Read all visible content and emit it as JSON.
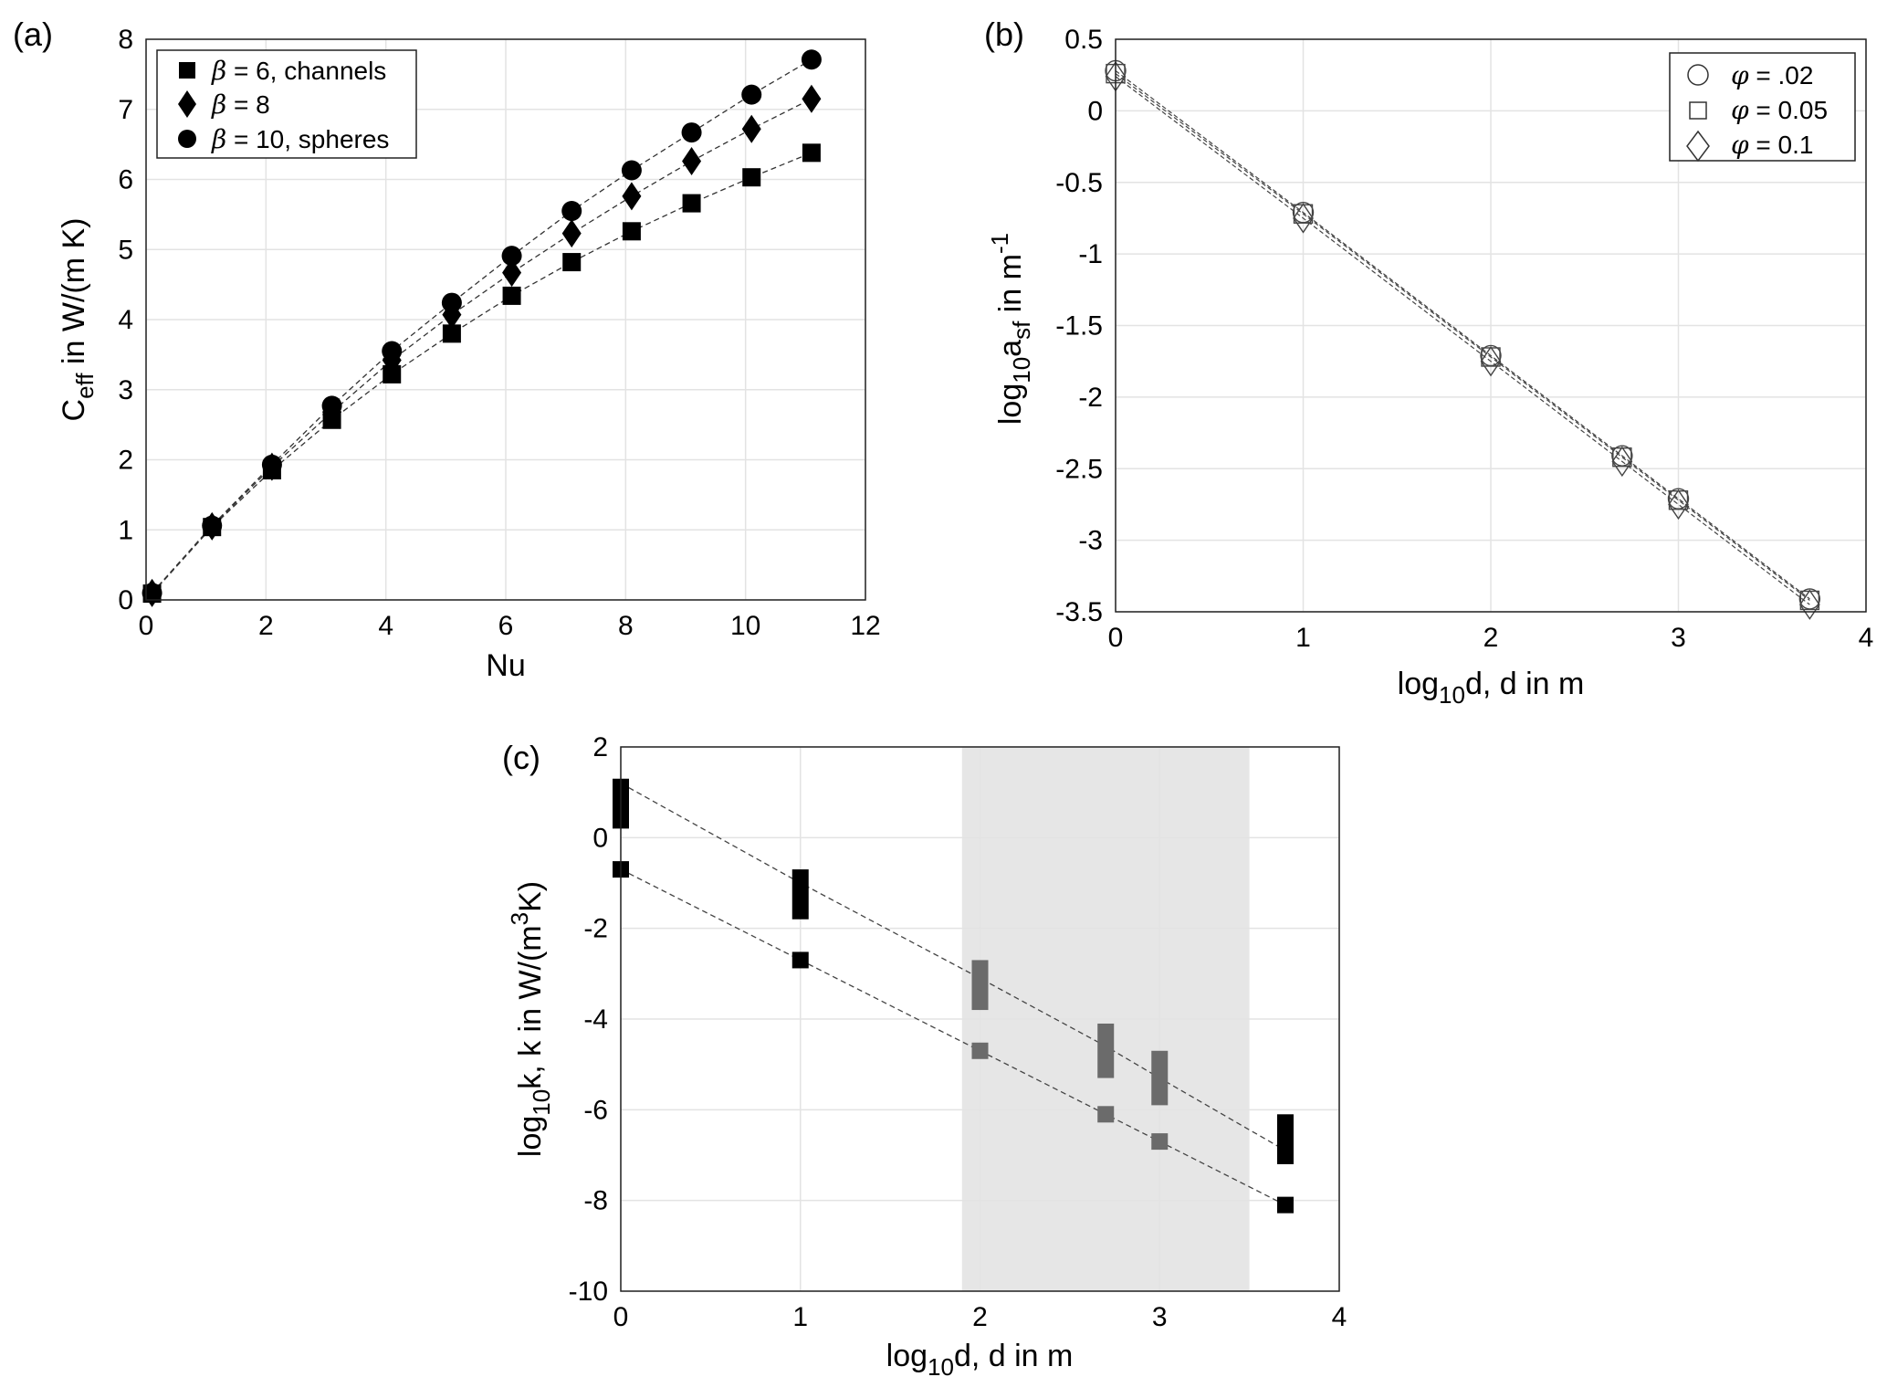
{
  "chart_data": [
    {
      "panel": "(a)",
      "type": "line",
      "xlabel": "Nu",
      "ylabel": {
        "main": "C",
        "sub": "eff",
        "rest": " in W/(m K)"
      },
      "xlim": [
        0,
        12
      ],
      "ylim": [
        0,
        8
      ],
      "xticks": [
        0,
        2,
        4,
        6,
        8,
        10,
        12
      ],
      "yticks": [
        0,
        1,
        2,
        3,
        4,
        5,
        6,
        7,
        8
      ],
      "x": [
        0.1,
        1.1,
        2.1,
        3.1,
        4.1,
        5.1,
        6.1,
        7.1,
        8.1,
        9.1,
        10.1,
        11.1
      ],
      "series": [
        {
          "name": "β = 6, channels",
          "marker": "square",
          "values": [
            0.09,
            1.04,
            1.85,
            2.57,
            3.22,
            3.8,
            4.34,
            4.82,
            5.26,
            5.66,
            6.03,
            6.38
          ]
        },
        {
          "name": "β = 8",
          "marker": "diamond",
          "values": [
            0.1,
            1.05,
            1.9,
            2.68,
            3.42,
            4.07,
            4.67,
            5.23,
            5.76,
            6.26,
            6.72,
            7.15
          ]
        },
        {
          "name": "β = 10, spheres",
          "marker": "circle",
          "values": [
            0.1,
            1.06,
            1.93,
            2.77,
            3.55,
            4.24,
            4.91,
            5.55,
            6.13,
            6.67,
            7.21,
            7.71
          ]
        }
      ],
      "legend": {
        "position": "top-left",
        "entries": [
          {
            "sym": "β",
            "text": " = 6, channels"
          },
          {
            "sym": "β",
            "text": " = 8"
          },
          {
            "sym": "β",
            "text": " = 10, spheres"
          }
        ]
      }
    },
    {
      "panel": "(b)",
      "type": "line",
      "xlabel": {
        "pre": "log",
        "sub": "10",
        "post": "d, d in m"
      },
      "ylabel": {
        "pre": "log",
        "sub1": "10",
        "mid": "a",
        "sub2": "sf",
        "post": " in m",
        "sup": "-1"
      },
      "xlim": [
        0,
        4
      ],
      "ylim": [
        -3.5,
        0.5
      ],
      "xticks": [
        "0",
        "1",
        "2",
        "3",
        "4"
      ],
      "yticks": [
        "0.5",
        "0",
        "-0.5",
        "-1",
        "-1.5",
        "-2",
        "-2.5",
        "-3",
        "-3.5"
      ],
      "x": [
        0,
        1,
        2,
        2.7,
        3,
        3.7
      ],
      "series": [
        {
          "name": "φ = .02",
          "marker": "circle-open",
          "values": [
            0.28,
            -0.71,
            -1.71,
            -2.41,
            -2.71,
            -3.41
          ]
        },
        {
          "name": "φ = 0.05",
          "marker": "square-open",
          "values": [
            0.26,
            -0.72,
            -1.72,
            -2.42,
            -2.72,
            -3.42
          ]
        },
        {
          "name": "φ = 0.1",
          "marker": "diamond-open",
          "values": [
            0.24,
            -0.75,
            -1.75,
            -2.45,
            -2.75,
            -3.45
          ]
        }
      ],
      "legend": {
        "position": "top-right",
        "entries": [
          {
            "sym": "φ",
            "text": " = .02"
          },
          {
            "sym": "φ",
            "text": " = 0.05"
          },
          {
            "sym": "φ",
            "text": " = 0.1"
          }
        ]
      }
    },
    {
      "panel": "(c)",
      "type": "scatter",
      "xlabel": {
        "pre": "log",
        "sub": "10",
        "post": "d, d in m"
      },
      "ylabel": {
        "pre": "log",
        "sub": "10",
        "mid": "k, k in W/(m",
        "sup": "3",
        "post": "K)"
      },
      "xlim": [
        0,
        4
      ],
      "ylim": [
        -10,
        2
      ],
      "xticks": [
        "0",
        "1",
        "2",
        "3",
        "4"
      ],
      "yticks": [
        "2",
        "0",
        "-2",
        "-4",
        "-6",
        "-8",
        "-10"
      ],
      "shaded_region": {
        "x_from": 1.9,
        "x_to": 3.5,
        "color": "#e6e6e6"
      },
      "x": [
        0,
        1,
        2,
        2.7,
        3,
        3.7
      ],
      "upper_ranges": [
        [
          0.2,
          1.3
        ],
        [
          -1.8,
          -0.7
        ],
        [
          -3.8,
          -2.7
        ],
        [
          -5.3,
          -4.1
        ],
        [
          -5.9,
          -4.7
        ],
        [
          -7.2,
          -6.1
        ]
      ],
      "lower_points": [
        -0.7,
        -2.7,
        -4.7,
        -6.1,
        -6.7,
        -8.1
      ],
      "upper_fit": [
        1.2,
        -1.0,
        -3.1,
        -4.6,
        -5.3,
        -6.9
      ],
      "lower_fit": [
        -0.7,
        -2.7,
        -4.7,
        -6.1,
        -6.7,
        -8.1
      ],
      "colors": {
        "outside": "#000000",
        "inside": "#6b6b6b"
      }
    }
  ]
}
